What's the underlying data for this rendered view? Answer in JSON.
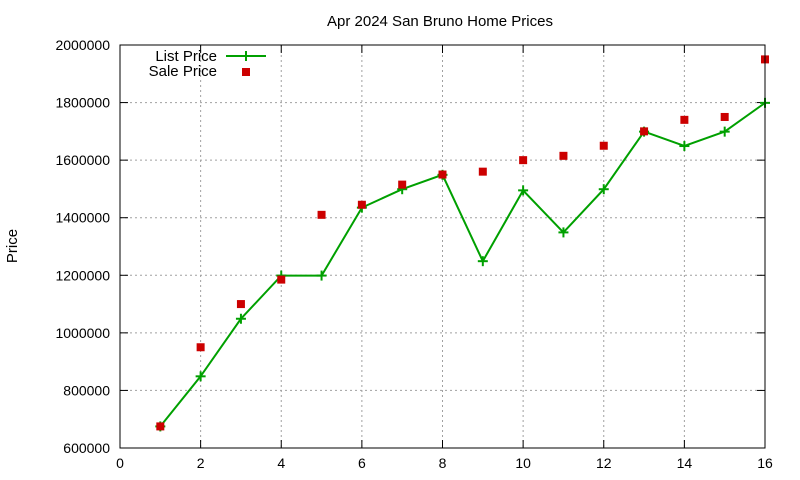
{
  "chart_data": {
    "type": "line",
    "title": "Apr 2024 San Bruno Home Prices",
    "xlabel": "",
    "ylabel": "Price",
    "xlim": [
      0,
      16
    ],
    "ylim": [
      600000,
      2000000
    ],
    "xticks": [
      0,
      2,
      4,
      6,
      8,
      10,
      12,
      14,
      16
    ],
    "yticks": [
      600000,
      800000,
      1000000,
      1200000,
      1400000,
      1600000,
      1800000,
      2000000
    ],
    "grid": true,
    "legend_position": "top-left",
    "series": [
      {
        "name": "List Price",
        "style": "line-with-plus-markers",
        "color": "#00a000",
        "x": [
          1,
          2,
          3,
          4,
          5,
          6,
          7,
          8,
          9,
          10,
          11,
          12,
          13,
          14,
          15,
          16
        ],
        "values": [
          675000,
          849000,
          1049000,
          1199000,
          1199000,
          1435000,
          1499000,
          1549000,
          1249000,
          1495000,
          1349000,
          1499000,
          1699000,
          1649000,
          1699000,
          1799000
        ]
      },
      {
        "name": "Sale Price",
        "style": "square-markers",
        "color": "#cc0000",
        "x": [
          1,
          2,
          3,
          4,
          5,
          6,
          7,
          8,
          9,
          10,
          11,
          12,
          13,
          14,
          15,
          16
        ],
        "values": [
          675000,
          950000,
          1100000,
          1185000,
          1410000,
          1445000,
          1515000,
          1550000,
          1560000,
          1600000,
          1615000,
          1650000,
          1700000,
          1740000,
          1750000,
          1950000
        ]
      }
    ]
  }
}
